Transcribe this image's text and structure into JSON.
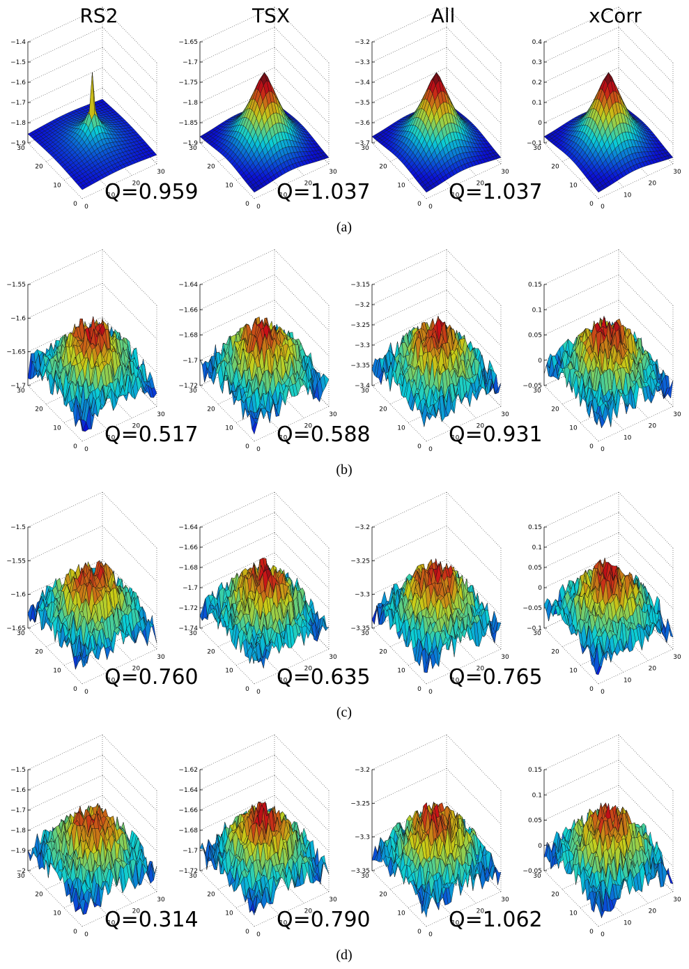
{
  "columns": [
    "RS2",
    "TSX",
    "All",
    "xCorr"
  ],
  "xyticks": [
    0,
    10,
    20,
    30
  ],
  "rows": [
    {
      "label": "(a)",
      "panels": [
        {
          "zlim": [
            -1.9,
            -1.4
          ],
          "zticks": [
            {
              "value": -1.9,
              "label": "−1.9"
            },
            {
              "value": -1.8,
              "label": "−1.8"
            },
            {
              "value": -1.7,
              "label": "−1.7"
            },
            {
              "value": -1.6,
              "label": "−1.6"
            },
            {
              "value": -1.5,
              "label": "−1.5"
            },
            {
              "value": -1.4,
              "label": "−1.4"
            }
          ],
          "q": "Q=0.959"
        },
        {
          "zlim": [
            -1.9,
            -1.65
          ],
          "zticks": [
            {
              "value": -1.9,
              "label": "−1.9"
            },
            {
              "value": -1.85,
              "label": "−1.85"
            },
            {
              "value": -1.8,
              "label": "−1.8"
            },
            {
              "value": -1.75,
              "label": "−1.75"
            },
            {
              "value": -1.7,
              "label": "−1.7"
            },
            {
              "value": -1.65,
              "label": "−1.65"
            }
          ],
          "q": "Q=1.037"
        },
        {
          "zlim": [
            -3.7,
            -3.2
          ],
          "zticks": [
            {
              "value": -3.7,
              "label": "−3.7"
            },
            {
              "value": -3.6,
              "label": "−3.6"
            },
            {
              "value": -3.5,
              "label": "−3.5"
            },
            {
              "value": -3.4,
              "label": "−3.4"
            },
            {
              "value": -3.3,
              "label": "−3.3"
            },
            {
              "value": -3.2,
              "label": "−3.2"
            }
          ],
          "q": "Q=1.037"
        },
        {
          "zlim": [
            -0.1,
            0.4
          ],
          "zticks": [
            {
              "value": -0.1,
              "label": "−0.1"
            },
            0,
            0.1,
            0.2,
            0.3,
            0.4
          ]
        }
      ]
    },
    {
      "label": "(b)",
      "panels": [
        {
          "zlim": [
            -1.7,
            -1.55
          ],
          "zticks": [
            {
              "value": -1.7,
              "label": "−1.7"
            },
            {
              "value": -1.65,
              "label": "−1.65"
            },
            {
              "value": -1.6,
              "label": "−1.6"
            },
            {
              "value": -1.55,
              "label": "−1.55"
            }
          ],
          "q": "Q=0.517"
        },
        {
          "zlim": [
            -1.72,
            -1.64
          ],
          "zticks": [
            {
              "value": -1.72,
              "label": "−1.72"
            },
            {
              "value": -1.7,
              "label": "−1.7"
            },
            {
              "value": -1.68,
              "label": "−1.68"
            },
            {
              "value": -1.66,
              "label": "−1.66"
            },
            {
              "value": -1.64,
              "label": "−1.64"
            }
          ],
          "q": "Q=0.588"
        },
        {
          "zlim": [
            -3.4,
            -3.15
          ],
          "zticks": [
            {
              "value": -3.4,
              "label": "−3.4"
            },
            {
              "value": -3.35,
              "label": "−3.35"
            },
            {
              "value": -3.3,
              "label": "−3.3"
            },
            {
              "value": -3.25,
              "label": "−3.25"
            },
            {
              "value": -3.2,
              "label": "−3.2"
            },
            {
              "value": -3.15,
              "label": "−3.15"
            }
          ],
          "q": "Q=0.931"
        },
        {
          "zlim": [
            -0.05,
            0.15
          ],
          "zticks": [
            {
              "value": -0.05,
              "label": "−0.05"
            },
            0,
            0.05,
            0.1,
            0.15
          ]
        }
      ]
    },
    {
      "label": "(c)",
      "panels": [
        {
          "zlim": [
            -1.65,
            -1.5
          ],
          "zticks": [
            {
              "value": -1.65,
              "label": "−1.65"
            },
            {
              "value": -1.6,
              "label": "−1.6"
            },
            {
              "value": -1.55,
              "label": "−1.55"
            },
            {
              "value": -1.5,
              "label": "−1.5"
            }
          ],
          "q": "Q=0.760"
        },
        {
          "zlim": [
            -1.74,
            -1.64
          ],
          "zticks": [
            {
              "value": -1.74,
              "label": "−1.74"
            },
            {
              "value": -1.72,
              "label": "−1.72"
            },
            {
              "value": -1.7,
              "label": "−1.7"
            },
            {
              "value": -1.68,
              "label": "−1.68"
            },
            {
              "value": -1.66,
              "label": "−1.66"
            },
            {
              "value": -1.64,
              "label": "−1.64"
            }
          ],
          "q": "Q=0.635"
        },
        {
          "zlim": [
            -3.35,
            -3.2
          ],
          "zticks": [
            {
              "value": -3.35,
              "label": "−3.35"
            },
            {
              "value": -3.3,
              "label": "−3.3"
            },
            {
              "value": -3.25,
              "label": "−3.25"
            },
            {
              "value": -3.2,
              "label": "−3.2"
            }
          ],
          "q": "Q=0.765"
        },
        {
          "zlim": [
            -0.1,
            0.15
          ],
          "zticks": [
            {
              "value": -0.1,
              "label": "−0.1"
            },
            {
              "value": -0.05,
              "label": "−0.05"
            },
            0,
            0.05,
            0.1,
            0.15
          ]
        }
      ]
    },
    {
      "label": "(d)",
      "panels": [
        {
          "zlim": [
            -2,
            -1.5
          ],
          "zticks": [
            {
              "value": -2,
              "label": "−2"
            },
            {
              "value": -1.9,
              "label": "−1.9"
            },
            {
              "value": -1.8,
              "label": "−1.8"
            },
            {
              "value": -1.7,
              "label": "−1.7"
            },
            {
              "value": -1.6,
              "label": "−1.6"
            },
            {
              "value": -1.5,
              "label": "−1.5"
            }
          ],
          "q": "Q=0.314"
        },
        {
          "zlim": [
            -1.72,
            -1.62
          ],
          "zticks": [
            {
              "value": -1.72,
              "label": "−1.72"
            },
            {
              "value": -1.7,
              "label": "−1.7"
            },
            {
              "value": -1.68,
              "label": "−1.68"
            },
            {
              "value": -1.66,
              "label": "−1.66"
            },
            {
              "value": -1.64,
              "label": "−1.64"
            },
            {
              "value": -1.62,
              "label": "−1.62"
            }
          ],
          "q": "Q=0.790"
        },
        {
          "zlim": [
            -3.35,
            -3.2
          ],
          "zticks": [
            {
              "value": -3.35,
              "label": "−3.35"
            },
            {
              "value": -3.3,
              "label": "−3.3"
            },
            {
              "value": -3.25,
              "label": "−3.25"
            },
            {
              "value": -3.2,
              "label": "−3.2"
            }
          ],
          "q": "Q=1.062"
        },
        {
          "zlim": [
            -0.05,
            0.15
          ],
          "zticks": [
            {
              "value": -0.05,
              "label": "−0.05"
            },
            0,
            0.05,
            0.1,
            0.15
          ]
        }
      ]
    }
  ]
}
